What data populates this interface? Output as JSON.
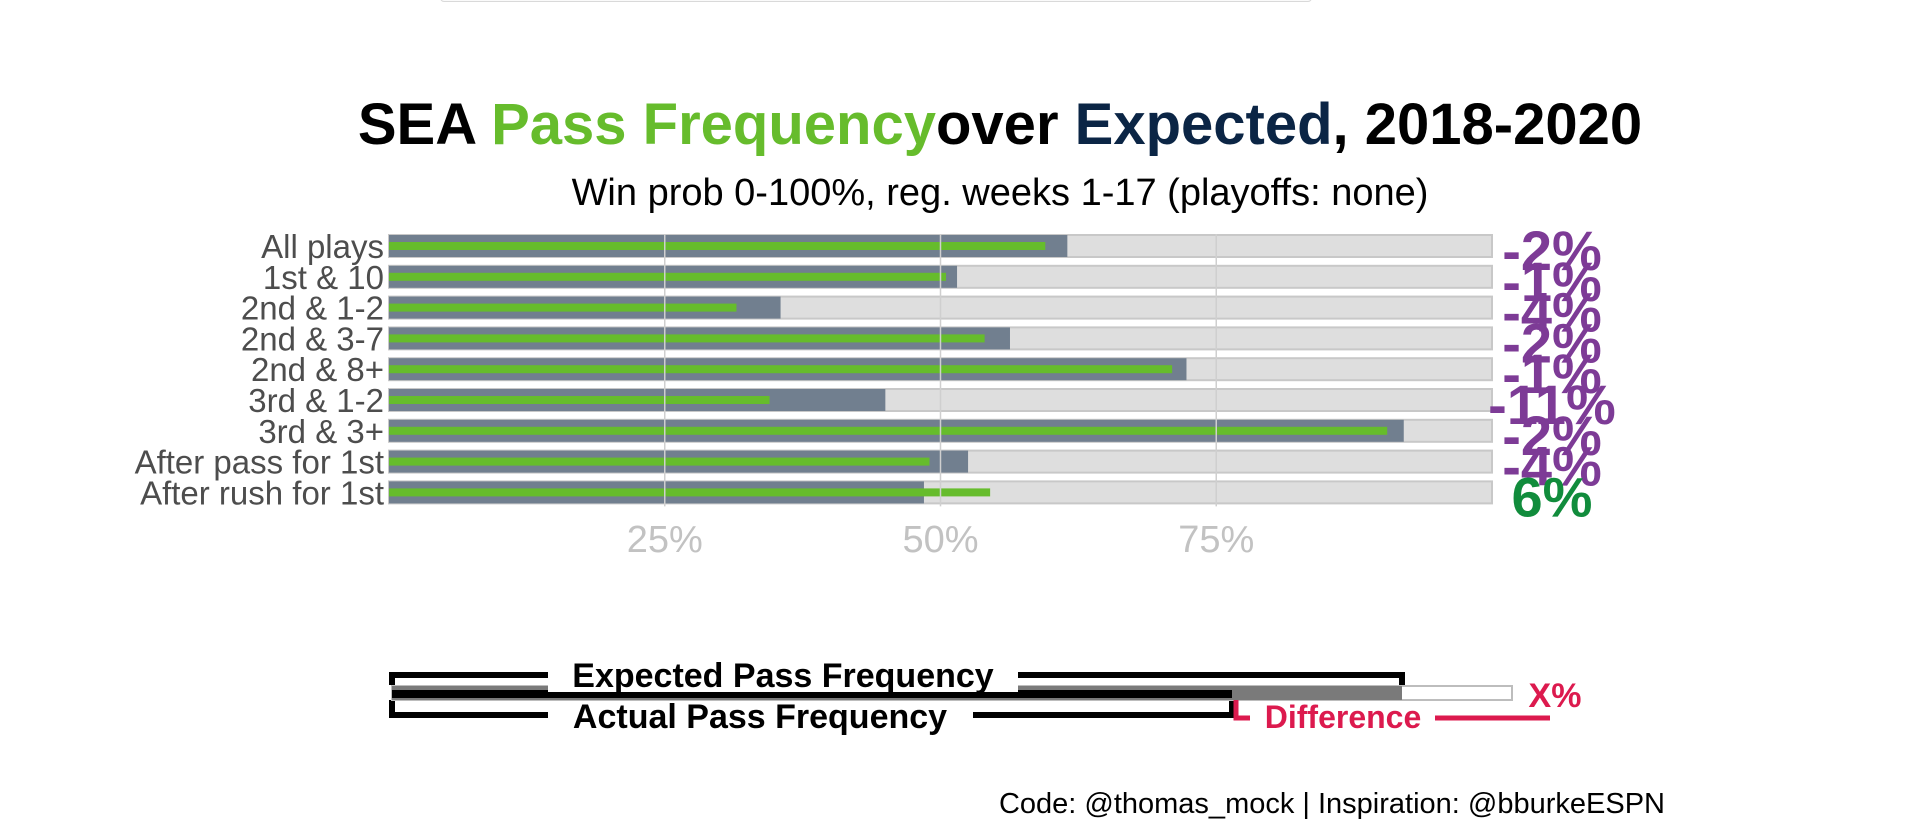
{
  "title": {
    "team": "SEA",
    "pass": "Pass",
    "frequency": "Frequency",
    "over": "over",
    "expected": "Expected",
    "comma": ",",
    "years": "2018-2020",
    "colors": {
      "pass": "#66bc2c",
      "expected": "#0b2545",
      "default": "#000000"
    }
  },
  "subtitle": "Win prob 0-100%, reg. weeks 1-17 (playoffs: none)",
  "colors": {
    "expected_bar": "#717f8f",
    "actual_bar": "#66bc2c",
    "background_bar": "#dedede",
    "negative_diff": "#7d3b96",
    "positive_diff": "#118c3c",
    "grid": "#cfcfcf",
    "axis_tick": "#c2c2c2",
    "legend_diff": "#dc1a4e"
  },
  "chart_data": {
    "type": "bar",
    "orientation": "horizontal",
    "categories": [
      "All plays",
      "1st & 10",
      "2nd & 1-2",
      "2nd & 3-7",
      "2nd & 8+",
      "3rd & 1-2",
      "3rd & 3+",
      "After pass for 1st",
      "After rush for 1st"
    ],
    "series": [
      {
        "name": "Expected Pass Frequency",
        "values": [
          61.5,
          51.5,
          35.5,
          56.3,
          72.3,
          45,
          92,
          52.5,
          48.5
        ]
      },
      {
        "name": "Actual Pass Frequency",
        "values": [
          59.5,
          50.5,
          31.5,
          54.0,
          71.0,
          34.5,
          90.5,
          49.0,
          54.5
        ]
      }
    ],
    "difference_labels": [
      "-2%",
      "-1%",
      "-4%",
      "-2%",
      "-1%",
      "-11%",
      "-2%",
      "-4%",
      "6%"
    ],
    "difference_values": [
      -2,
      -1,
      -4,
      -2,
      -1,
      -11,
      -2,
      -4,
      6
    ],
    "xlim": [
      0,
      100
    ],
    "x_ticks": [
      25,
      50,
      75
    ],
    "x_tick_labels": [
      "25%",
      "50%",
      "75%"
    ],
    "grid": true
  },
  "legend": {
    "expected_label": "Expected Pass Frequency",
    "actual_label": "Actual Pass Frequency",
    "difference_label": "Difference",
    "diff_value_label": "X%"
  },
  "caption": "Code: @thomas_mock | Inspiration: @bburkeESPN"
}
